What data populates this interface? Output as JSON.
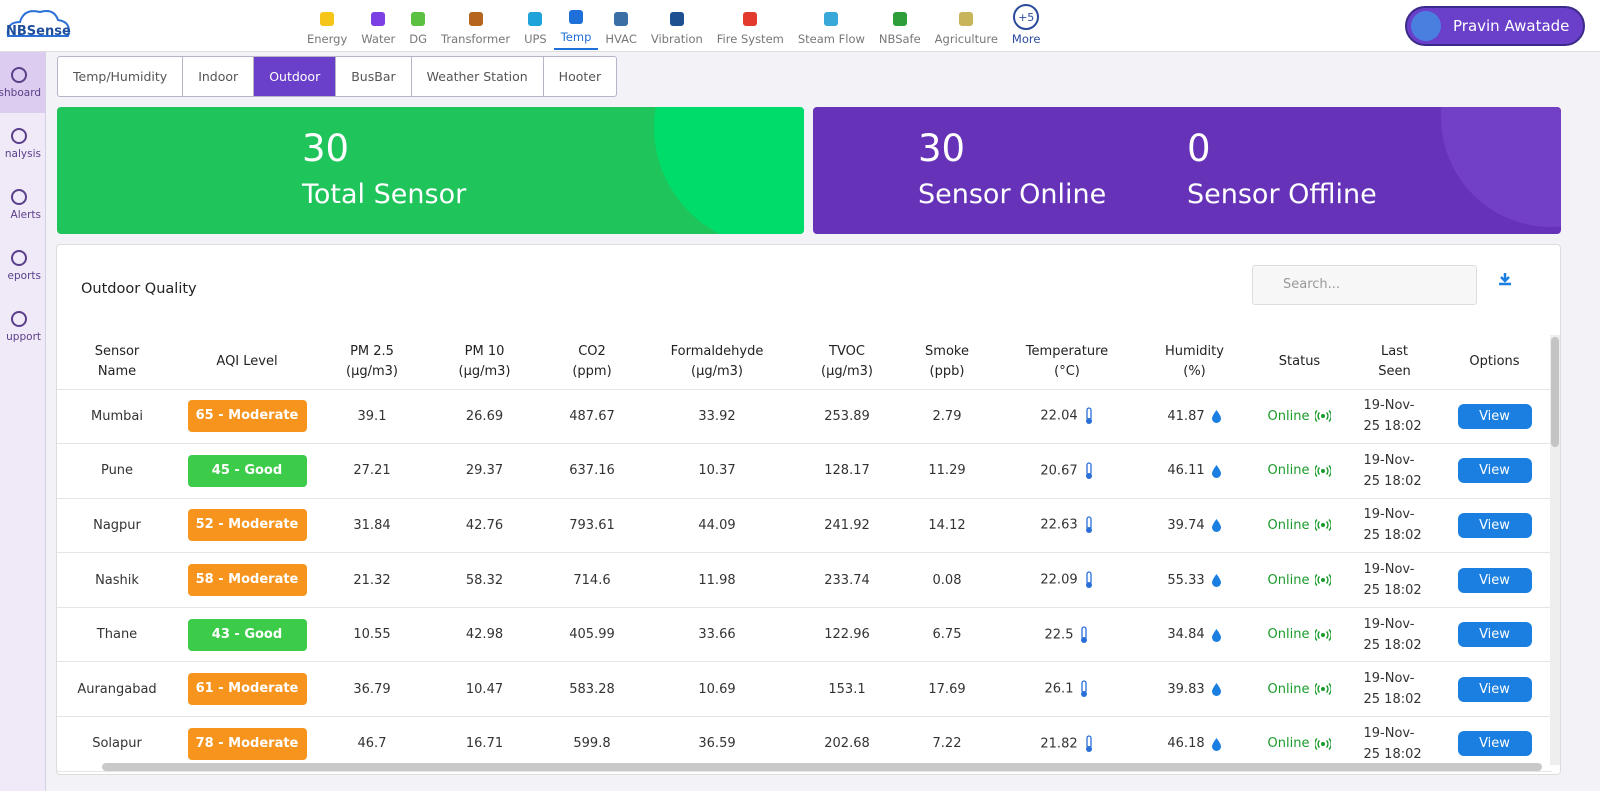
{
  "header": {
    "logo": "NBSense",
    "nav": [
      {
        "label": "Energy",
        "color": "#f5c518",
        "selected": false
      },
      {
        "label": "Water",
        "color": "#7b3fe4",
        "selected": false
      },
      {
        "label": "DG",
        "color": "#5cc043",
        "selected": false
      },
      {
        "label": "Transformer",
        "color": "#b5651d",
        "selected": false
      },
      {
        "label": "UPS",
        "color": "#1fa3d8",
        "selected": false
      },
      {
        "label": "Temp",
        "color": "#1f6fd8",
        "selected": true
      },
      {
        "label": "HVAC",
        "color": "#3a6ea5",
        "selected": false
      },
      {
        "label": "Vibration",
        "color": "#1d4f91",
        "selected": false
      },
      {
        "label": "Fire System",
        "color": "#e23b2e",
        "selected": false
      },
      {
        "label": "Steam Flow",
        "color": "#38a8d8",
        "selected": false
      },
      {
        "label": "NBSafe",
        "color": "#2e9e3a",
        "selected": false
      },
      {
        "label": "Agriculture",
        "color": "#c8b45a",
        "selected": false
      }
    ],
    "more": {
      "badge": "+5",
      "label": "More"
    },
    "user": "Pravin Awatade"
  },
  "sidebar": [
    {
      "label": "shboard",
      "selected": true
    },
    {
      "label": "nalysis",
      "selected": false
    },
    {
      "label": "Alerts",
      "selected": false
    },
    {
      "label": "eports",
      "selected": false
    },
    {
      "label": "upport",
      "selected": false
    }
  ],
  "tabs": [
    {
      "label": "Temp/Humidity",
      "selected": false
    },
    {
      "label": "Indoor",
      "selected": false
    },
    {
      "label": "Outdoor",
      "selected": true
    },
    {
      "label": "BusBar",
      "selected": false
    },
    {
      "label": "Weather Station",
      "selected": false
    },
    {
      "label": "Hooter",
      "selected": false
    }
  ],
  "stats": {
    "total": {
      "value": 30,
      "label": "Total Sensor"
    },
    "online": {
      "value": 30,
      "label": "Sensor Online"
    },
    "offline": {
      "value": 0,
      "label": "Sensor Offline"
    }
  },
  "table": {
    "title": "Outdoor Quality",
    "search_placeholder": "Search...",
    "columns": [
      "Sensor\nName",
      "AQI Level",
      "PM 2.5\n(µg/m3)",
      "PM 10\n(µg/m3)",
      "CO2\n(ppm)",
      "Formaldehyde\n(µg/m3)",
      "TVOC\n(µg/m3)",
      "Smoke\n(ppb)",
      "Temperature\n(°C)",
      "Humidity\n(%)",
      "Status",
      "Last\nSeen",
      "Options"
    ],
    "rows": [
      {
        "name": "Mumbai",
        "aqi": "65 - Moderate",
        "aqi_color": "#f7941d",
        "pm25": 39.1,
        "pm10": 26.69,
        "co2": 487.67,
        "formaldehyde": 33.92,
        "tvoc": 253.89,
        "smoke": 2.79,
        "temperature": 22.04,
        "humidity": 41.87,
        "status": "Online",
        "last_seen": "19-Nov-25 18:02",
        "action": "View"
      },
      {
        "name": "Pune",
        "aqi": "45 - Good",
        "aqi_color": "#3dcc4a",
        "pm25": 27.21,
        "pm10": 29.37,
        "co2": 637.16,
        "formaldehyde": 10.37,
        "tvoc": 128.17,
        "smoke": 11.29,
        "temperature": 20.67,
        "humidity": 46.11,
        "status": "Online",
        "last_seen": "19-Nov-25 18:02",
        "action": "View"
      },
      {
        "name": "Nagpur",
        "aqi": "52 - Moderate",
        "aqi_color": "#f7941d",
        "pm25": 31.84,
        "pm10": 42.76,
        "co2": 793.61,
        "formaldehyde": 44.09,
        "tvoc": 241.92,
        "smoke": 14.12,
        "temperature": 22.63,
        "humidity": 39.74,
        "status": "Online",
        "last_seen": "19-Nov-25 18:02",
        "action": "View"
      },
      {
        "name": "Nashik",
        "aqi": "58 - Moderate",
        "aqi_color": "#f7941d",
        "pm25": 21.32,
        "pm10": 58.32,
        "co2": 714.6,
        "formaldehyde": 11.98,
        "tvoc": 233.74,
        "smoke": 0.08,
        "temperature": 22.09,
        "humidity": 55.33,
        "status": "Online",
        "last_seen": "19-Nov-25 18:02",
        "action": "View"
      },
      {
        "name": "Thane",
        "aqi": "43 - Good",
        "aqi_color": "#3dcc4a",
        "pm25": 10.55,
        "pm10": 42.98,
        "co2": 405.99,
        "formaldehyde": 33.66,
        "tvoc": 122.96,
        "smoke": 6.75,
        "temperature": 22.5,
        "humidity": 34.84,
        "status": "Online",
        "last_seen": "19-Nov-25 18:02",
        "action": "View"
      },
      {
        "name": "Aurangabad",
        "aqi": "61 - Moderate",
        "aqi_color": "#f7941d",
        "pm25": 36.79,
        "pm10": 10.47,
        "co2": 583.28,
        "formaldehyde": 10.69,
        "tvoc": 153.1,
        "smoke": 17.69,
        "temperature": 26.1,
        "humidity": 39.83,
        "status": "Online",
        "last_seen": "19-Nov-25 18:02",
        "action": "View"
      },
      {
        "name": "Solapur",
        "aqi": "78 - Moderate",
        "aqi_color": "#f7941d",
        "pm25": 46.7,
        "pm10": 16.71,
        "co2": 599.8,
        "formaldehyde": 36.59,
        "tvoc": 202.68,
        "smoke": 7.22,
        "temperature": 21.82,
        "humidity": 46.18,
        "status": "Online",
        "last_seen": "19-Nov-25 18:02",
        "action": "View"
      }
    ]
  }
}
